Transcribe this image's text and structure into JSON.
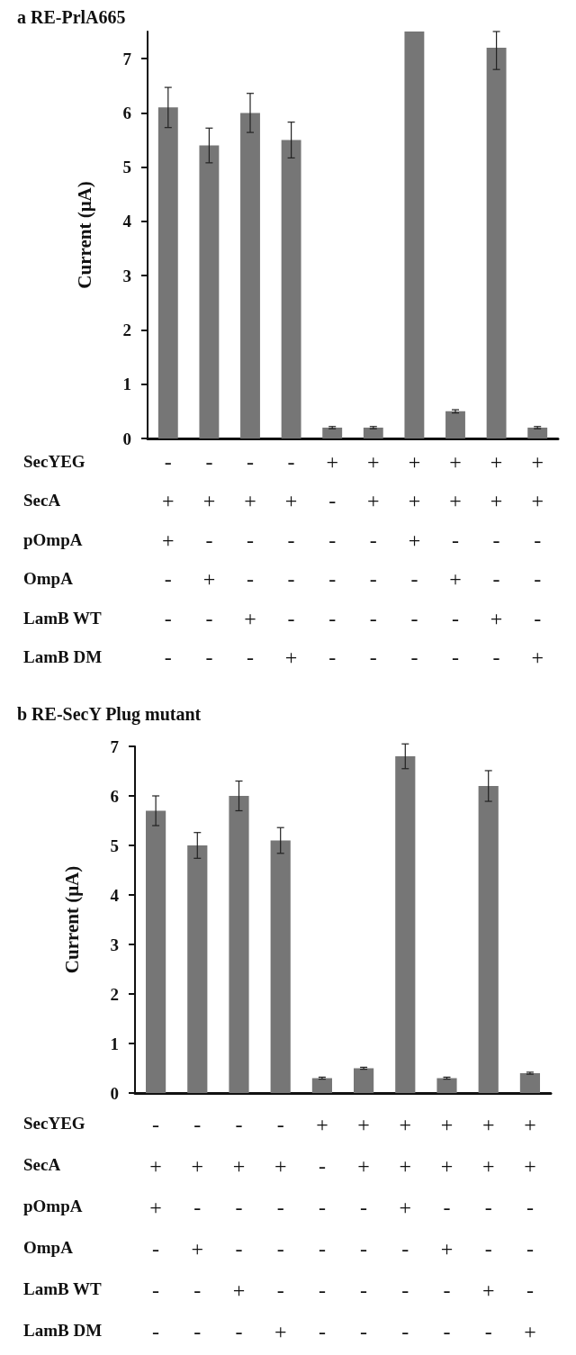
{
  "chart_data": [
    {
      "type": "bar",
      "title": "a RE-PrlA665",
      "ylabel": "Current (μA)",
      "categories": [
        "-\n+\n+\n-\n-\n-",
        "-\n+\n-\n+\n-\n-",
        "-\n+\n-\n-\n+\n-",
        "-\n+\n-\n-\n-\n+",
        "+\n-\n-\n-\n-\n-",
        "+\n+\n-\n-\n-\n-",
        "+\n+\n+\n-\n-\n-",
        "+\n+\n-\n+\n-\n-",
        "+\n+\n-\n-\n+\n-",
        "+\n+\n-\n-\n-\n+"
      ],
      "values": [
        6.1,
        5.4,
        6.0,
        5.5,
        0.2,
        0.2,
        7.5,
        0.5,
        7.2,
        0.2
      ],
      "errors": [
        0.37,
        0.32,
        0.36,
        0.33,
        0.02,
        0.02,
        null,
        0.03,
        [
          6.8,
          7.5
        ],
        0.02
      ],
      "color": "#767676",
      "ylim": [
        0,
        7.5
      ],
      "yticks": [
        0,
        1,
        2,
        3,
        4,
        5,
        6,
        7
      ],
      "annotations": [
        "SecYEG",
        "SecA",
        "pOmpA",
        "OmpA",
        "LamB WT",
        "LamB DM"
      ]
    },
    {
      "type": "bar",
      "title": "b RE-SecY Plug mutant",
      "ylabel": "Current (μA)",
      "categories": [
        "-\n+\n+\n-\n-\n-",
        "-\n+\n-\n+\n-\n-",
        "-\n+\n-\n-\n+\n-",
        "-\n+\n-\n-\n-\n+",
        "+\n-\n-\n-\n-\n-",
        "+\n+\n-\n-\n-\n-",
        "+\n+\n+\n-\n-\n-",
        "+\n+\n-\n+\n-\n-",
        "+\n+\n-\n-\n+\n-",
        "+\n+\n-\n-\n-\n+"
      ],
      "values": [
        5.7,
        5.0,
        6.0,
        5.1,
        0.3,
        0.5,
        6.8,
        0.3,
        6.2,
        0.4
      ],
      "errors": [
        0.3,
        0.26,
        0.3,
        0.26,
        0.02,
        0.02,
        0.25,
        0.02,
        0.31,
        0.02
      ],
      "color": "#767676",
      "ylim": [
        0,
        7
      ],
      "yticks": [
        0,
        1,
        2,
        3,
        4,
        5,
        6,
        7
      ],
      "annotations": [
        "SecYEG",
        "SecA",
        "pOmpA",
        "OmpA",
        "LamB WT",
        "LamB DM"
      ]
    }
  ]
}
